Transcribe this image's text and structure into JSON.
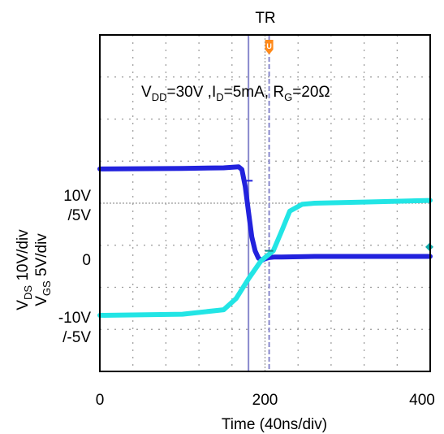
{
  "chart_data": {
    "type": "line",
    "title": "TR",
    "xlabel": "Time (40ns/div)",
    "x_ticks": [
      "0",
      "200",
      "400"
    ],
    "xlim": [
      0,
      400
    ],
    "ylim": [
      -20,
      40
    ],
    "y_tick_labels": [
      {
        "value": 10,
        "top": "10V",
        "bottom": "/5V"
      },
      {
        "value": 0,
        "label": "0"
      },
      {
        "value": -10,
        "top": "-10V",
        "bottom": "/-5V"
      }
    ],
    "ylabel_vds": {
      "main": "V",
      "sub": "DS",
      "rest": " 10V/div"
    },
    "ylabel_vgs": {
      "main": "V",
      "sub": "GS",
      "rest": " 5V/div"
    },
    "conditions": {
      "vdd_main": "V",
      "vdd_sub": "DD",
      "vdd_rest": "=30V ,",
      "id_main": "I",
      "id_sub": "D",
      "id_rest": "=5mA, ",
      "rg_main": "R",
      "rg_sub": "G",
      "rg_rest": "=20Ω"
    },
    "cursors_x": [
      180,
      205
    ],
    "trigger_marker": "U",
    "grid": true,
    "colors": {
      "vds": "#2222dd",
      "vgs": "#22e5e5",
      "cursor": "#8888cc",
      "grid": "#9a9a9a",
      "marker": "#ff8a1a"
    },
    "series": [
      {
        "name": "VDS",
        "color": "#2222dd",
        "x": [
          0,
          100,
          150,
          168,
          172,
          176,
          180,
          184,
          188,
          192,
          196,
          200,
          205,
          212,
          220,
          260,
          320,
          400
        ],
        "y": [
          16.1,
          16.2,
          16.3,
          16.5,
          16.0,
          13.0,
          8.5,
          4.0,
          1.5,
          0.2,
          -0.2,
          0.1,
          0.3,
          0.4,
          0.4,
          0.5,
          0.5,
          0.5
        ]
      },
      {
        "name": "VGS",
        "color": "#22e5e5",
        "x": [
          0,
          100,
          150,
          165,
          180,
          195,
          210,
          220,
          230,
          245,
          260,
          320,
          400
        ],
        "y": [
          -10.0,
          -9.8,
          -9.0,
          -7.0,
          -3.5,
          -0.3,
          1.5,
          5.0,
          8.6,
          9.8,
          10.0,
          10.2,
          10.5
        ]
      }
    ]
  }
}
